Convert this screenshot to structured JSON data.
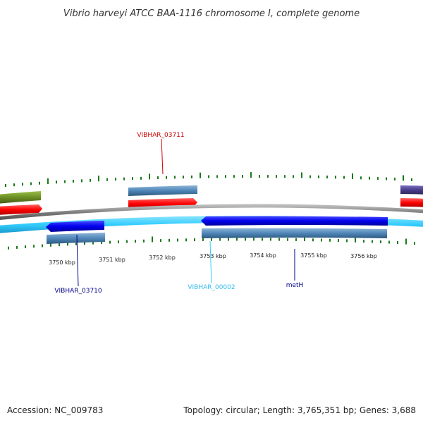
{
  "title": "Vibrio harveyi ATCC BAA-1116 chromosome I, complete genome",
  "footer": {
    "accession": "Accession: NC_009783",
    "summary": "Topology: circular; Length: 3,765,351 bp; Genes: 3,688"
  },
  "colors": {
    "forward_cds": "#ff0000",
    "forward_gene": "#4f86b8",
    "reverse_cds": "#0000ee",
    "reverse_gene": "#4f86b8",
    "backbone": "#808080",
    "rna_track": "#33ccff",
    "gc_tick": "#1a7a1a",
    "olive_feature": "#6b8e23",
    "purple_feature": "#483d8b"
  },
  "ticks": [
    {
      "label": "3750 kbp"
    },
    {
      "label": "3751 kbp"
    },
    {
      "label": "3752 kbp"
    },
    {
      "label": "3753 kbp"
    },
    {
      "label": "3754 kbp"
    },
    {
      "label": "3755 kbp"
    },
    {
      "label": "3756 kbp"
    }
  ],
  "labels": {
    "vibhar_03711": "VIBHAR_03711",
    "vibhar_03710": "VIBHAR_03710",
    "vibhar_00002": "VIBHAR_00002",
    "meth": "metH"
  }
}
